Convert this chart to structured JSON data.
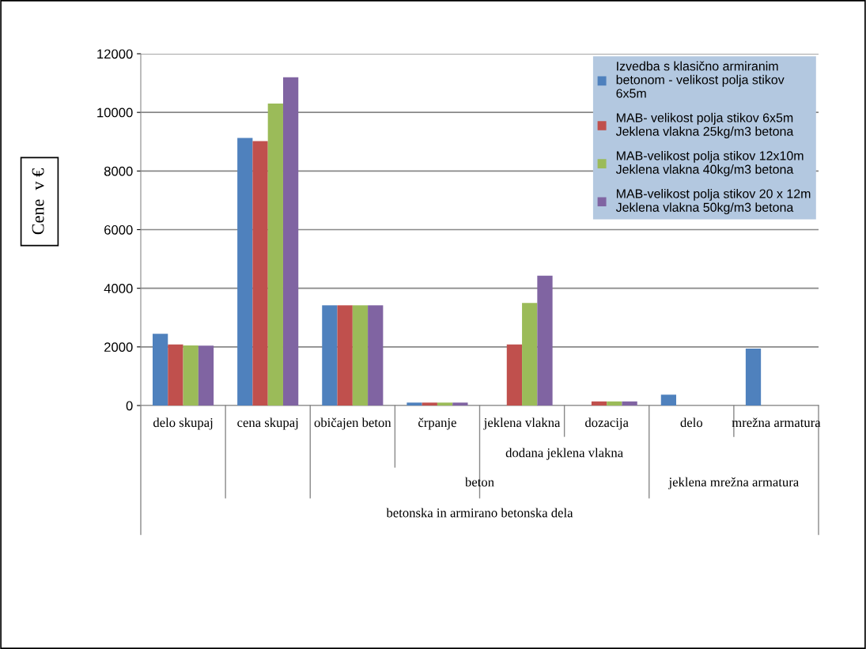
{
  "chart_data": {
    "type": "bar",
    "ylabel": "Cene  v €",
    "categories": [
      "delo skupaj",
      "cena skupaj",
      "običajen beton",
      "črpanje",
      "jeklena vlakna",
      "dozacija",
      "delo",
      "mrežna armatura"
    ],
    "series": [
      {
        "name": "Izvedba s klasično armiranim betonom - velikost polja stikov 6x5m",
        "color": "#4f81bd",
        "values": [
          2450,
          9130,
          3420,
          100,
          null,
          null,
          370,
          1940
        ]
      },
      {
        "name": "MAB- velikost polja stikov 6x5m Jeklena vlakna 25kg/m3 betona",
        "color": "#c0504d",
        "values": [
          2080,
          9020,
          3420,
          100,
          2080,
          140,
          null,
          null
        ]
      },
      {
        "name": "MAB-velikost polja stikov 12x10m Jeklena vlakna 40kg/m3 betona",
        "color": "#9bbb59",
        "values": [
          2050,
          10300,
          3420,
          100,
          3500,
          140,
          null,
          null
        ]
      },
      {
        "name": "MAB-velikost polja stikov 20 x 12m Jeklena vlakna 50kg/m3 betona",
        "color": "#8064a2",
        "values": [
          2040,
          11200,
          3420,
          100,
          4430,
          140,
          null,
          null
        ]
      }
    ],
    "annotations": [
      "beton",
      "dodana jeklena vlakna",
      "jeklena mrežna armatura",
      "betonska in armirano betonska dela"
    ],
    "ylim": [
      0,
      12000
    ],
    "yticks": [
      0,
      2000,
      4000,
      6000,
      8000,
      10000,
      12000
    ],
    "grid": "y",
    "legend": "top right"
  }
}
